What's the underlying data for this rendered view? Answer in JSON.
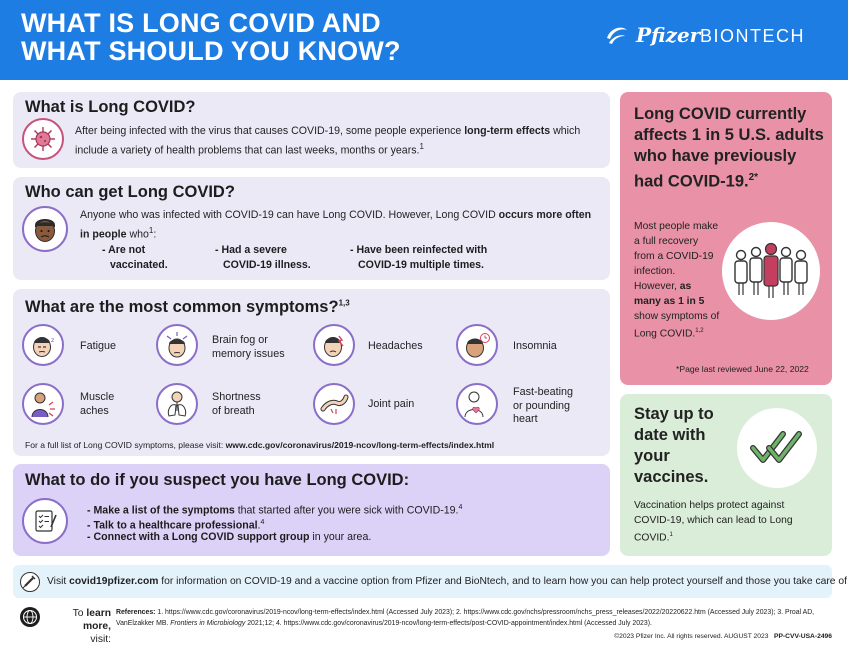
{
  "header": {
    "title_line1": "WHAT IS LONG COVID AND",
    "title_line2": "WHAT SHOULD YOU KNOW?",
    "brand1": "Pfizer",
    "brand2": "BIONTECH",
    "background": "#1e7de3"
  },
  "what": {
    "title": "What is Long COVID?",
    "text_pre": "After being infected with the virus that causes COVID-19, some people experience ",
    "text_bold": "long-term effects",
    "text_post": " which include a variety of health problems that can last weeks, months or years.",
    "ref": "1",
    "icon": "virus-icon"
  },
  "who": {
    "title": "Who can get Long COVID?",
    "text_pre": "Anyone who was infected with COVID-19 can have Long COVID. However, Long COVID ",
    "text_bold": "occurs more often in people",
    "text_post": " who",
    "ref": "1",
    "colon": ":",
    "bullets": [
      {
        "line1": "- Are not",
        "line2": "vaccinated."
      },
      {
        "line1": "- Had a severe",
        "line2": "COVID-19 illness."
      },
      {
        "line1": "- Have been reinfected with",
        "line2": "COVID-19 multiple times."
      }
    ],
    "icon": "person-face-icon"
  },
  "symptoms": {
    "title": "What are the most common symptoms?",
    "ref": "1,3",
    "items": [
      {
        "label": "Fatigue",
        "icon": "fatigue-icon"
      },
      {
        "label": "Brain fog or\nmemory issues",
        "icon": "brain-fog-icon"
      },
      {
        "label": "Headaches",
        "icon": "headache-icon"
      },
      {
        "label": "Insomnia",
        "icon": "insomnia-icon"
      },
      {
        "label": "Muscle\naches",
        "icon": "muscle-ache-icon"
      },
      {
        "label": "Shortness\nof breath",
        "icon": "lungs-icon"
      },
      {
        "label": "Joint pain",
        "icon": "joint-pain-icon"
      },
      {
        "label": "Fast-beating\nor pounding\nheart",
        "icon": "heart-icon"
      }
    ],
    "full_list_pre": "For a full list of Long COVID symptoms, please visit: ",
    "full_list_url": "www.cdc.gov/coronavirus/2019-ncov/long-term-effects/index.html"
  },
  "todo": {
    "title": "What to do if you suspect you have Long COVID:",
    "items": [
      {
        "bold": "- Make a list of the symptoms",
        "rest": " that started after you were sick with COVID-19.",
        "ref": "4"
      },
      {
        "bold": "- Talk to a healthcare professional",
        "rest": ".",
        "ref": "4"
      },
      {
        "bold": "- Connect with a Long COVID support group",
        "rest": " in your area.",
        "ref": ""
      }
    ],
    "icon": "checklist-icon"
  },
  "stat": {
    "headline": "Long COVID currently affects 1 in 5 U.S. adults who have previously had COVID-19.",
    "headline_ref": "2*",
    "body_pre": "Most people make a full recovery from a COVID-19 infection. However, ",
    "body_bold": "as many as 1 in 5",
    "body_post": " show symptoms of Long COVID.",
    "body_ref": "1,2",
    "note": "*Page last reviewed June 22, 2022",
    "icon": "people-group-icon",
    "background": "#e891a7"
  },
  "stay": {
    "headline": "Stay up to date with your vaccines.",
    "body": "Vaccination helps protect against COVID-19, which can lead to Long COVID.",
    "ref": "1",
    "icon": "double-check-icon",
    "background": "#d9edd8"
  },
  "visit": {
    "pre": "Visit ",
    "site": "covid19pfizer.com",
    "post": " for information on COVID-19 and a vaccine option from Pfizer and BioNtech, and to learn how you can help protect yourself and those you take care of."
  },
  "refs": {
    "learn_pre": "To ",
    "learn_bold": "learn more,",
    "learn_post": "visit:",
    "label": "References:",
    "text1": " 1. https://www.cdc.gov/coronavirus/2019-ncov/long-term-effects/index.html (Accessed July 2023); 2. https://www.cdc.gov/nchs/pressroom/nchs_press_releases/2022/20220622.htm (Accessed July 2023); 3. Proal AD, VanElzakker MB. ",
    "journal": "Frontiers in Microbiology",
    "text2": " 2021;12; 4. https://www.cdc.gov/coronavirus/2019-ncov/long-term-effects/post-COVID-appointment/index.html (Accessed July 2023)."
  },
  "footer": {
    "copyright": "©2023 Pfizer Inc. All rights reserved. AUGUST 2023",
    "code": "PP-CVV-USA-2496"
  }
}
